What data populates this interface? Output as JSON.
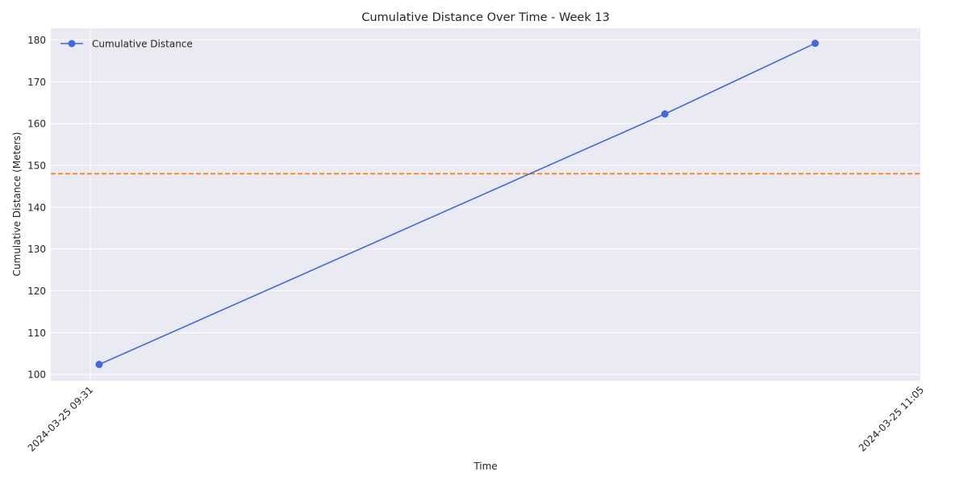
{
  "chart_data": {
    "type": "line",
    "title": "Cumulative Distance Over Time - Week 13",
    "xlabel": "Time",
    "ylabel": "Cumulative Distance (Meters)",
    "x_ticks": [
      "2024-03-25 09:31",
      "2024-03-25 11:05"
    ],
    "x": [
      "2024-03-25 09:32",
      "2024-03-25 10:36",
      "2024-03-25 10:53"
    ],
    "ylim": [
      98.5,
      182.8
    ],
    "y_ticks": [
      100,
      110,
      120,
      130,
      140,
      150,
      160,
      170,
      180
    ],
    "series": [
      {
        "name": "Cumulative Distance",
        "values": [
          102.4,
          162.3,
          179.2
        ],
        "color": "#4169e1"
      }
    ],
    "reference_line": {
      "y": 148.0,
      "color": "#ff7f0e",
      "style": "dashed"
    },
    "grid": true,
    "legend_position": "top-left",
    "background_color": "#eaeaf2"
  }
}
